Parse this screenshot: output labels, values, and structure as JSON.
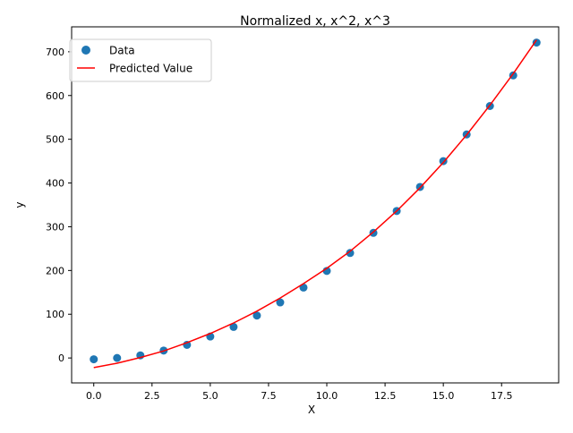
{
  "chart_data": {
    "type": "scatter",
    "title": "Normalized x, x^2, x^3",
    "xlabel": "X",
    "ylabel": "y",
    "xlim": [
      -0.95,
      19.95
    ],
    "ylim": [
      -57,
      757
    ],
    "xticks": [
      0.0,
      2.5,
      5.0,
      7.5,
      10.0,
      12.5,
      15.0,
      17.5
    ],
    "xtick_labels": [
      "0.0",
      "2.5",
      "5.0",
      "7.5",
      "10.0",
      "12.5",
      "15.0",
      "17.5"
    ],
    "yticks": [
      0,
      100,
      200,
      300,
      400,
      500,
      600,
      700
    ],
    "ytick_labels": [
      "0",
      "100",
      "200",
      "300",
      "400",
      "500",
      "600",
      "700"
    ],
    "grid": false,
    "legend_position": "upper-left",
    "series": [
      {
        "name": "Data",
        "kind": "scatter",
        "color": "#1f77b4",
        "x": [
          0,
          1,
          2,
          3,
          4,
          5,
          6,
          7,
          8,
          9,
          10,
          11,
          12,
          13,
          14,
          15,
          16,
          17,
          18,
          19
        ],
        "y": [
          -3,
          0,
          6,
          17,
          30,
          49,
          71,
          97,
          127,
          161,
          199,
          240,
          286,
          336,
          391,
          450,
          511,
          576,
          646,
          721
        ]
      },
      {
        "name": "Predicted Value",
        "kind": "line",
        "color": "#ff0000",
        "x": [
          0,
          1,
          2,
          3,
          4,
          5,
          6,
          7,
          8,
          9,
          10,
          11,
          12,
          13,
          14,
          15,
          16,
          17,
          18,
          19
        ],
        "y": [
          -22,
          -12,
          1,
          16,
          35,
          56,
          80,
          107,
          137,
          170,
          205,
          244,
          288,
          336,
          389,
          447,
          510,
          578,
          650,
          727
        ]
      }
    ]
  }
}
